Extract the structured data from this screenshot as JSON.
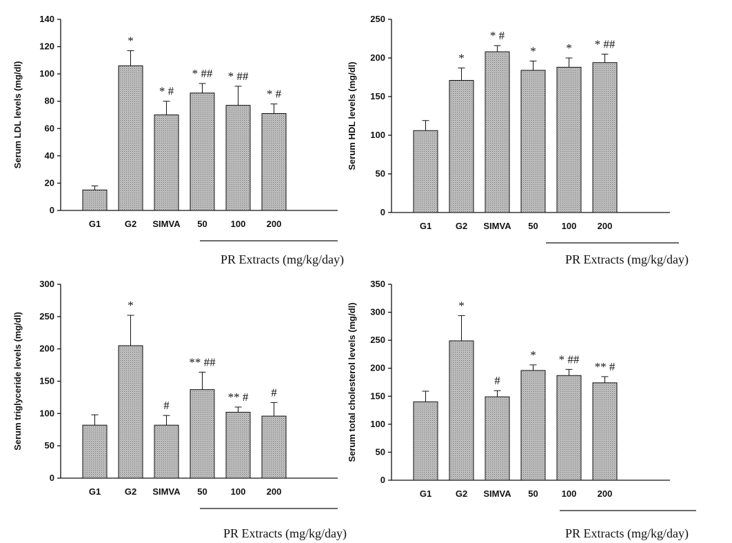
{
  "chart_data": [
    {
      "type": "bar",
      "title": "",
      "xlabel": "",
      "ylabel": "Serum LDL levels (mg/dl)",
      "ylim": [
        0,
        140
      ],
      "yticks": [
        0,
        20,
        40,
        60,
        80,
        100,
        120,
        140
      ],
      "categories": [
        "G1",
        "G2",
        "SIMVA",
        "50",
        "100",
        "200"
      ],
      "values": [
        15,
        106,
        70,
        86,
        77,
        71
      ],
      "errors": [
        3,
        11,
        10,
        7,
        14,
        7
      ],
      "annotations": [
        "",
        "*",
        "* #",
        "* ##",
        "* ##",
        "* #"
      ],
      "group_label": "PR Extracts (mg/kg/day)",
      "grid": false
    },
    {
      "type": "bar",
      "title": "",
      "xlabel": "",
      "ylabel": "Serum HDL levels (mg/dl)",
      "ylim": [
        0,
        250
      ],
      "yticks": [
        0,
        50,
        100,
        150,
        200,
        250
      ],
      "categories": [
        "G1",
        "G2",
        "SIMVA",
        "50",
        "100",
        "200"
      ],
      "values": [
        106,
        171,
        208,
        184,
        188,
        194
      ],
      "errors": [
        13,
        16,
        8,
        12,
        12,
        11
      ],
      "annotations": [
        "",
        "*",
        "* #",
        "*",
        "*",
        "* ##"
      ],
      "group_label": "PR Extracts (mg/kg/day)",
      "grid": false
    },
    {
      "type": "bar",
      "title": "",
      "xlabel": "",
      "ylabel": "Serum triglyceride levels (mg/dl)",
      "ylim": [
        0,
        300
      ],
      "yticks": [
        0,
        50,
        100,
        150,
        200,
        250,
        300
      ],
      "categories": [
        "G1",
        "G2",
        "SIMVA",
        "50",
        "100",
        "200"
      ],
      "values": [
        82,
        205,
        82,
        137,
        102,
        96
      ],
      "errors": [
        16,
        47,
        15,
        27,
        8,
        21
      ],
      "annotations": [
        "",
        "*",
        "#",
        "** ##",
        "** #",
        "#"
      ],
      "group_label": "PR Extracts (mg/kg/day)",
      "grid": false
    },
    {
      "type": "bar",
      "title": "",
      "xlabel": "",
      "ylabel": "Serum total cholesterol levels (mg/dl)",
      "ylim": [
        0,
        350
      ],
      "yticks": [
        0,
        50,
        100,
        150,
        200,
        250,
        300,
        350
      ],
      "categories": [
        "G1",
        "G2",
        "SIMVA",
        "50",
        "100",
        "200"
      ],
      "values": [
        140,
        249,
        149,
        196,
        187,
        174
      ],
      "errors": [
        19,
        45,
        11,
        10,
        11,
        11
      ],
      "annotations": [
        "",
        "*",
        "#",
        "*",
        "* ##",
        "** #"
      ],
      "group_label": "PR Extracts (mg/kg/day)",
      "grid": false
    }
  ]
}
